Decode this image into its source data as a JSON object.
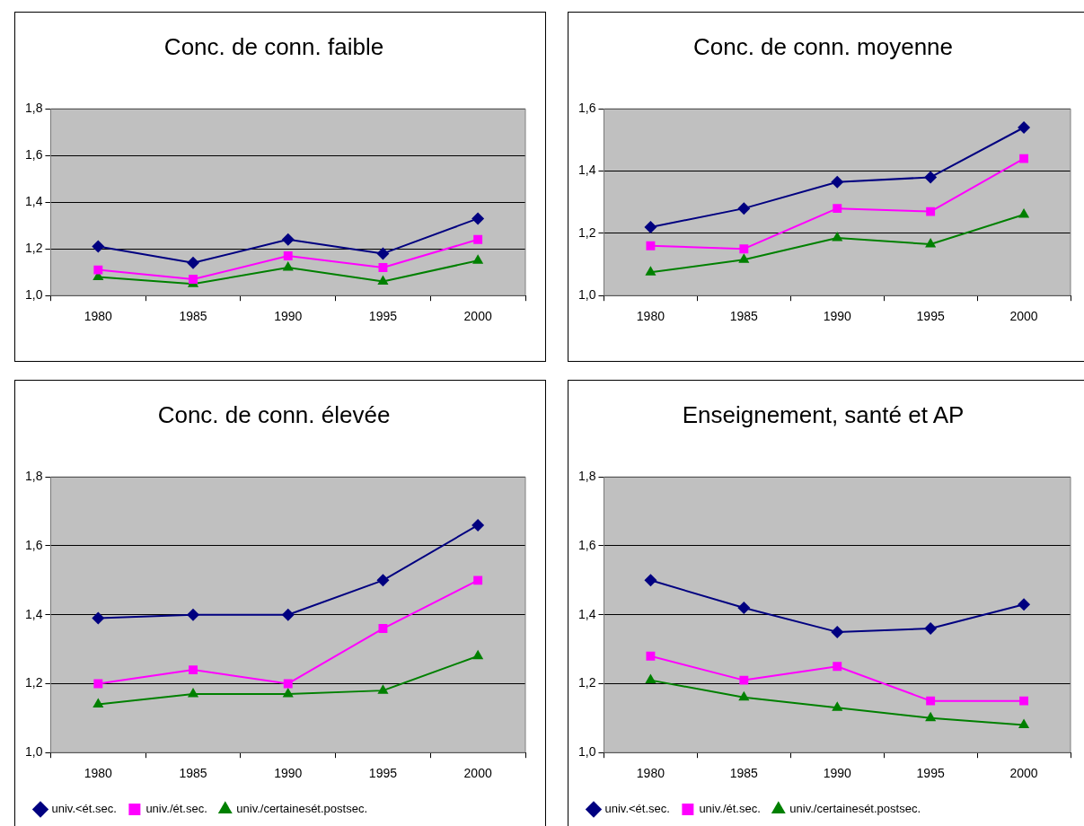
{
  "chart_data": [
    {
      "type": "line",
      "title": "Conc. de conn. faible",
      "categories": [
        "1980",
        "1985",
        "1990",
        "1995",
        "2000"
      ],
      "ylim": [
        1.0,
        1.8
      ],
      "yticks": [
        {
          "value": 1.0,
          "label": "1,0"
        },
        {
          "value": 1.2,
          "label": "1,2"
        },
        {
          "value": 1.4,
          "label": "1,4"
        },
        {
          "value": 1.6,
          "label": "1,6"
        },
        {
          "value": 1.8,
          "label": "1,8"
        }
      ],
      "grid": "y",
      "legend": false,
      "series": [
        {
          "color": "#000080",
          "marker": "diamond",
          "values": [
            1.21,
            1.14,
            1.24,
            1.18,
            1.33
          ]
        },
        {
          "color": "#ff00ff",
          "marker": "square",
          "values": [
            1.11,
            1.07,
            1.17,
            1.12,
            1.24
          ]
        },
        {
          "color": "#008000",
          "marker": "triangle",
          "values": [
            1.08,
            1.05,
            1.12,
            1.06,
            1.15
          ]
        }
      ]
    },
    {
      "type": "line",
      "title": "Conc. de conn. moyenne",
      "categories": [
        "1980",
        "1985",
        "1990",
        "1995",
        "2000"
      ],
      "ylim": [
        1.0,
        1.6
      ],
      "yticks": [
        {
          "value": 1.0,
          "label": "1,0"
        },
        {
          "value": 1.2,
          "label": "1,2"
        },
        {
          "value": 1.4,
          "label": "1,4"
        },
        {
          "value": 1.6,
          "label": "1,6"
        }
      ],
      "grid": "y",
      "legend": false,
      "series": [
        {
          "color": "#000080",
          "marker": "diamond",
          "values": [
            1.22,
            1.28,
            1.365,
            1.38,
            1.54
          ]
        },
        {
          "color": "#ff00ff",
          "marker": "square",
          "values": [
            1.16,
            1.15,
            1.28,
            1.27,
            1.44
          ]
        },
        {
          "color": "#008000",
          "marker": "triangle",
          "values": [
            1.075,
            1.115,
            1.185,
            1.165,
            1.26
          ]
        }
      ]
    },
    {
      "type": "line",
      "title": "Conc. de conn. élevée",
      "categories": [
        "1980",
        "1985",
        "1990",
        "1995",
        "2000"
      ],
      "ylim": [
        1.0,
        1.8
      ],
      "yticks": [
        {
          "value": 1.0,
          "label": "1,0"
        },
        {
          "value": 1.2,
          "label": "1,2"
        },
        {
          "value": 1.4,
          "label": "1,4"
        },
        {
          "value": 1.6,
          "label": "1,6"
        },
        {
          "value": 1.8,
          "label": "1,8"
        }
      ],
      "grid": "y",
      "legend": "bottom",
      "series": [
        {
          "name": "univ.<ét.sec.",
          "color": "#000080",
          "marker": "diamond",
          "values": [
            1.39,
            1.4,
            1.4,
            1.5,
            1.66
          ]
        },
        {
          "name": "univ./ét.sec.",
          "color": "#ff00ff",
          "marker": "square",
          "values": [
            1.2,
            1.24,
            1.2,
            1.36,
            1.5
          ]
        },
        {
          "name": "univ./certainesét.postsec.",
          "color": "#008000",
          "marker": "triangle",
          "values": [
            1.14,
            1.17,
            1.17,
            1.18,
            1.28
          ]
        }
      ]
    },
    {
      "type": "line",
      "title": "Enseignement, santé et AP",
      "categories": [
        "1980",
        "1985",
        "1990",
        "1995",
        "2000"
      ],
      "ylim": [
        1.0,
        1.8
      ],
      "yticks": [
        {
          "value": 1.0,
          "label": "1,0"
        },
        {
          "value": 1.2,
          "label": "1,2"
        },
        {
          "value": 1.4,
          "label": "1,4"
        },
        {
          "value": 1.6,
          "label": "1,6"
        },
        {
          "value": 1.8,
          "label": "1,8"
        }
      ],
      "grid": "y",
      "legend": "bottom",
      "series": [
        {
          "name": "univ.<ét.sec.",
          "color": "#000080",
          "marker": "diamond",
          "values": [
            1.5,
            1.42,
            1.35,
            1.36,
            1.43
          ]
        },
        {
          "name": "univ./ét.sec.",
          "color": "#ff00ff",
          "marker": "square",
          "values": [
            1.28,
            1.21,
            1.25,
            1.15,
            1.15
          ]
        },
        {
          "name": "univ./certainesét.postsec.",
          "color": "#008000",
          "marker": "triangle",
          "values": [
            1.21,
            1.16,
            1.13,
            1.1,
            1.08
          ]
        }
      ]
    }
  ]
}
